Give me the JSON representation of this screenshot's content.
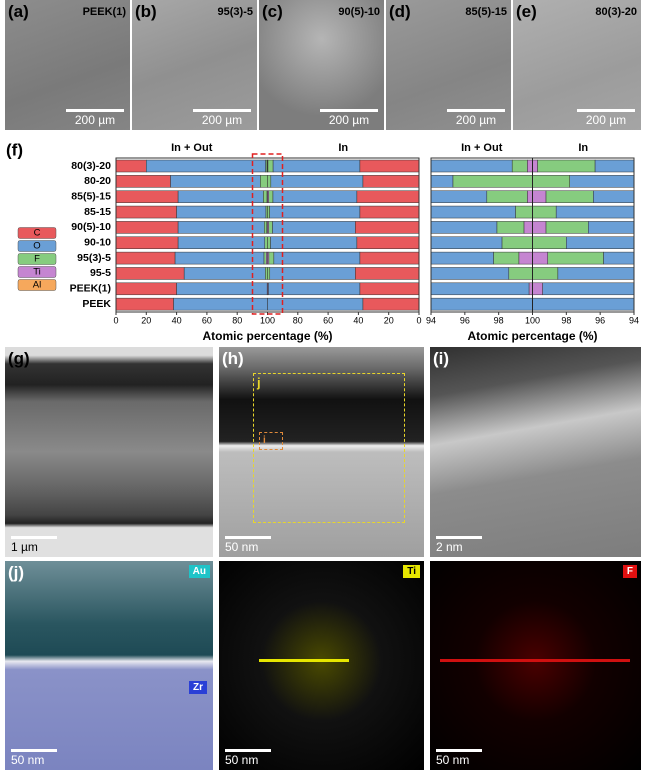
{
  "panels": {
    "a": {
      "label": "(a)",
      "sample": "PEEK(1)",
      "scale": "200 µm"
    },
    "b": {
      "label": "(b)",
      "sample": "95(3)-5",
      "scale": "200 µm"
    },
    "c": {
      "label": "(c)",
      "sample": "90(5)-10",
      "scale": "200 µm"
    },
    "d": {
      "label": "(d)",
      "sample": "85(5)-15",
      "scale": "200 µm"
    },
    "e": {
      "label": "(e)",
      "sample": "80(3)-20",
      "scale": "200 µm"
    },
    "f": {
      "label": "(f)"
    },
    "g": {
      "label": "(g)",
      "scale": "1 µm"
    },
    "h": {
      "label": "(h)",
      "scale": "50 nm",
      "inset_j": "j",
      "inset_i": "i"
    },
    "i": {
      "label": "(i)",
      "scale": "2 nm"
    },
    "j": {
      "label": "(j)",
      "maps": [
        {
          "elements": [
            "Au",
            "Zr"
          ],
          "scale": "50 nm"
        },
        {
          "elements": [
            "Ti"
          ],
          "scale": "50 nm"
        },
        {
          "elements": [
            "F"
          ],
          "scale": "50 nm"
        }
      ]
    }
  },
  "chart_data": [
    {
      "type": "bar",
      "orientation": "horizontal",
      "group_labels": [
        "In + Out",
        "In"
      ],
      "categories": [
        "80(3)-20",
        "80-20",
        "85(5)-15",
        "85-15",
        "90(5)-10",
        "90-10",
        "95(3)-5",
        "95-5",
        "PEEK(1)",
        "PEEK"
      ],
      "xlabel": "Atomic percentage (%)",
      "xlim": [
        0,
        200
      ],
      "xticks": [
        0,
        20,
        40,
        60,
        80,
        100,
        {
          "value": 120,
          "label": "80"
        },
        {
          "value": 140,
          "label": "60"
        },
        {
          "value": 160,
          "label": "40"
        },
        {
          "value": 180,
          "label": "20"
        },
        {
          "value": 200,
          "label": "0"
        }
      ],
      "legend": "left",
      "series": [
        {
          "name": "C",
          "color": "#e8595c",
          "values": [
            20,
            36,
            41,
            40,
            41,
            41,
            39,
            45,
            40,
            38
          ],
          "values_in": [
            39,
            37,
            41,
            39,
            42,
            41,
            39,
            42,
            39,
            37
          ]
        },
        {
          "name": "O",
          "color": "#6a9fd6",
          "values": [
            78.8,
            59.3,
            56.3,
            59.0,
            56.9,
            57.2,
            58.7,
            53.6,
            59.8,
            62.0
          ],
          "values_in": [
            57.3,
            60.8,
            55.4,
            59.6,
            54.7,
            57.0,
            56.8,
            56.5,
            60.4,
            63.0
          ]
        },
        {
          "name": "F",
          "color": "#86cc7f",
          "values": [
            0.9,
            4.7,
            2.4,
            1.0,
            1.6,
            1.8,
            1.5,
            1.4,
            0,
            0
          ],
          "values_in": [
            3.4,
            2.2,
            2.8,
            1.4,
            2.5,
            2.0,
            3.3,
            1.5,
            0,
            0
          ]
        },
        {
          "name": "Ti",
          "color": "#c585d1",
          "values": [
            0.3,
            0,
            0.3,
            0,
            0.5,
            0,
            0.8,
            0,
            0.2,
            0
          ],
          "values_in": [
            0.3,
            0,
            0.8,
            0,
            0.8,
            0,
            0.9,
            0,
            0.6,
            0
          ]
        },
        {
          "name": "Al",
          "color": "#f6a85c",
          "values": [
            0,
            0,
            0,
            0,
            0,
            0,
            0,
            0,
            0,
            0
          ],
          "values_in": [
            0,
            0,
            0,
            0,
            0,
            0,
            0,
            0,
            0,
            0
          ]
        }
      ]
    },
    {
      "type": "bar",
      "orientation": "horizontal",
      "group_labels": [
        "In + Out",
        "In"
      ],
      "xlabel": "Atomic percentage (%)",
      "xlim": [
        94,
        106
      ],
      "xticks": [
        94,
        96,
        98,
        100,
        {
          "value": 102,
          "label": "98"
        },
        {
          "value": 104,
          "label": "96"
        },
        {
          "value": 106,
          "label": "94"
        }
      ],
      "series": [
        {
          "name": "C",
          "color": "#e8595c",
          "values": [
            20,
            36,
            41,
            40,
            41,
            41,
            39,
            45,
            40,
            38
          ],
          "values_in": [
            39,
            37,
            41,
            39,
            42,
            41,
            39,
            42,
            39,
            37
          ]
        },
        {
          "name": "O",
          "color": "#6a9fd6",
          "values": [
            78.8,
            59.3,
            56.3,
            59.0,
            56.9,
            57.2,
            58.7,
            53.6,
            59.8,
            62.0
          ],
          "values_in": [
            57.3,
            60.8,
            55.4,
            59.6,
            54.7,
            57.0,
            56.8,
            56.5,
            60.4,
            63.0
          ]
        },
        {
          "name": "F",
          "color": "#86cc7f",
          "values": [
            0.9,
            4.7,
            2.4,
            1.0,
            1.6,
            1.8,
            1.5,
            1.4,
            0,
            0
          ],
          "values_in": [
            3.4,
            2.2,
            2.8,
            1.4,
            2.5,
            2.0,
            3.3,
            1.5,
            0,
            0
          ]
        },
        {
          "name": "Ti",
          "color": "#c585d1",
          "values": [
            0.3,
            0,
            0.3,
            0,
            0.5,
            0,
            0.8,
            0,
            0.2,
            0
          ],
          "values_in": [
            0.3,
            0,
            0.8,
            0,
            0.8,
            0,
            0.9,
            0,
            0.6,
            0
          ]
        },
        {
          "name": "Al",
          "color": "#f6a85c",
          "values": [
            0,
            0,
            0,
            0,
            0,
            0,
            0,
            0,
            0,
            0
          ],
          "values_in": [
            0,
            0,
            0,
            0,
            0,
            0,
            0,
            0,
            0,
            0
          ]
        }
      ]
    }
  ]
}
